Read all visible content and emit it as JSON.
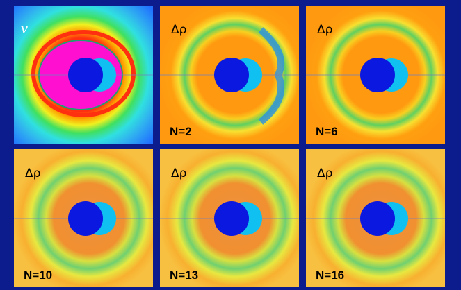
{
  "panels": [
    {
      "label": "v"
    },
    {
      "label": "Δρ",
      "caption": "N=2"
    },
    {
      "label": "Δρ",
      "caption": "N=6"
    },
    {
      "label": "Δρ",
      "caption": "N=10"
    },
    {
      "label": "Δρ",
      "caption": "N=13"
    },
    {
      "label": "Δρ",
      "caption": "N=16"
    }
  ]
}
